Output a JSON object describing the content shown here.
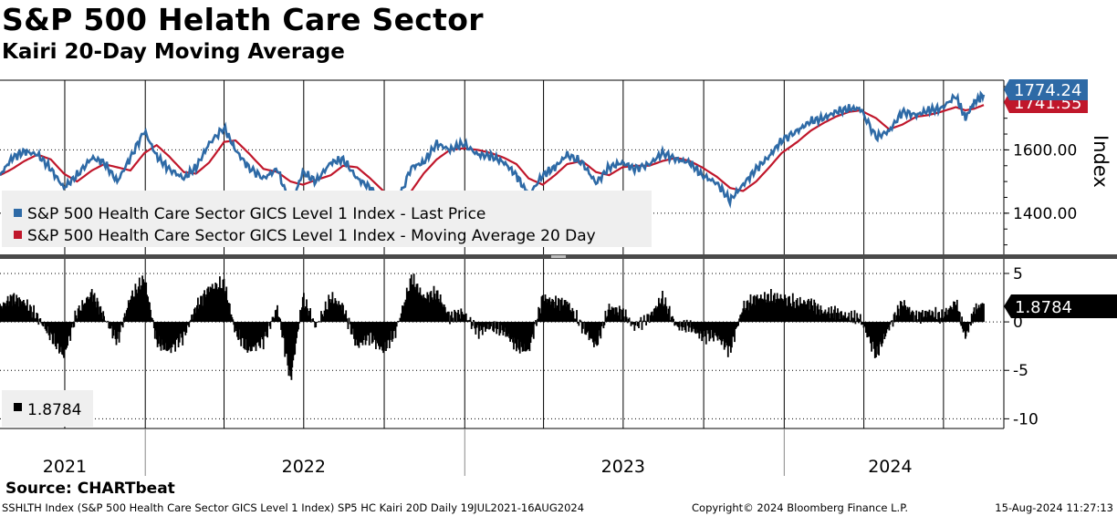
{
  "header": {
    "title": "S&P 500 Helath Care Sector",
    "subtitle": "Kairi 20-Day Moving Average"
  },
  "footer": {
    "source": "Source: CHARTbeat",
    "left": "SSHLTH Index (S&P 500 Health Care Sector GICS Level 1 Index) SP5 HC Kairi 20D  Daily 19JUL2021-16AUG2024",
    "center": "Copyright© 2024 Bloomberg Finance L.P.",
    "right": "15-Aug-2024 11:27:13"
  },
  "colors": {
    "price": "#2e6aa6",
    "moving_average": "#c0172b",
    "kairi": "#000000",
    "grid": "#000000"
  },
  "chart_data": [
    {
      "type": "line",
      "panel": "upper",
      "ylabel": "Index",
      "ylim": [
        1270,
        1820
      ],
      "yticks": [
        1400,
        1600
      ],
      "ytick_labels": [
        "1400.00",
        "1600.00"
      ],
      "x_range": [
        "2021-07-19",
        "2024-08-16"
      ],
      "x_year_labels": [
        {
          "label": "2021",
          "date": "2021-10-01"
        },
        {
          "label": "2022",
          "date": "2022-07-01"
        },
        {
          "label": "2023",
          "date": "2023-07-01"
        },
        {
          "label": "2024",
          "date": "2024-05-01"
        }
      ],
      "legend": [
        {
          "label": "S&P 500 Health Care Sector GICS Level 1 Index - Last Price",
          "color": "#2e6aa6"
        },
        {
          "label": "S&P 500 Health Care Sector GICS Level 1 Index - Moving Average 20 Day",
          "color": "#c0172b"
        }
      ],
      "legend_position": "bottom-left",
      "last_values": {
        "price": "1774.24",
        "moving_average": "1741.55"
      },
      "series": [
        {
          "name": "S&P 500 Health Care Sector GICS Level 1 Index - Last Price",
          "color": "#2e6aa6",
          "points": [
            [
              "2021-07-19",
              1520
            ],
            [
              "2021-08-02",
              1575
            ],
            [
              "2021-08-16",
              1595
            ],
            [
              "2021-08-31",
              1585
            ],
            [
              "2021-09-15",
              1540
            ],
            [
              "2021-09-30",
              1480
            ],
            [
              "2021-10-15",
              1520
            ],
            [
              "2021-11-01",
              1575
            ],
            [
              "2021-11-15",
              1560
            ],
            [
              "2021-11-30",
              1500
            ],
            [
              "2021-12-15",
              1575
            ],
            [
              "2021-12-31",
              1660
            ],
            [
              "2022-01-14",
              1580
            ],
            [
              "2022-01-28",
              1540
            ],
            [
              "2022-02-14",
              1510
            ],
            [
              "2022-02-28",
              1545
            ],
            [
              "2022-03-15",
              1620
            ],
            [
              "2022-04-01",
              1670
            ],
            [
              "2022-04-14",
              1600
            ],
            [
              "2022-04-29",
              1545
            ],
            [
              "2022-05-16",
              1510
            ],
            [
              "2022-06-01",
              1540
            ],
            [
              "2022-06-16",
              1420
            ],
            [
              "2022-06-30",
              1530
            ],
            [
              "2022-07-15",
              1500
            ],
            [
              "2022-08-01",
              1560
            ],
            [
              "2022-08-15",
              1570
            ],
            [
              "2022-08-31",
              1510
            ],
            [
              "2022-09-15",
              1480
            ],
            [
              "2022-09-30",
              1430
            ],
            [
              "2022-10-14",
              1420
            ],
            [
              "2022-11-01",
              1545
            ],
            [
              "2022-11-15",
              1560
            ],
            [
              "2022-11-30",
              1620
            ],
            [
              "2022-12-15",
              1600
            ],
            [
              "2022-12-30",
              1620
            ],
            [
              "2023-01-16",
              1585
            ],
            [
              "2023-01-31",
              1580
            ],
            [
              "2023-02-15",
              1560
            ],
            [
              "2023-03-01",
              1520
            ],
            [
              "2023-03-15",
              1455
            ],
            [
              "2023-03-31",
              1520
            ],
            [
              "2023-04-14",
              1545
            ],
            [
              "2023-04-28",
              1585
            ],
            [
              "2023-05-15",
              1560
            ],
            [
              "2023-05-31",
              1495
            ],
            [
              "2023-06-15",
              1545
            ],
            [
              "2023-06-30",
              1560
            ],
            [
              "2023-07-14",
              1540
            ],
            [
              "2023-07-31",
              1555
            ],
            [
              "2023-08-15",
              1590
            ],
            [
              "2023-08-31",
              1570
            ],
            [
              "2023-09-15",
              1560
            ],
            [
              "2023-09-29",
              1520
            ],
            [
              "2023-10-16",
              1495
            ],
            [
              "2023-10-31",
              1440
            ],
            [
              "2023-11-15",
              1490
            ],
            [
              "2023-11-30",
              1540
            ],
            [
              "2023-12-15",
              1580
            ],
            [
              "2023-12-29",
              1630
            ],
            [
              "2024-01-16",
              1660
            ],
            [
              "2024-01-31",
              1690
            ],
            [
              "2024-02-15",
              1700
            ],
            [
              "2024-02-29",
              1720
            ],
            [
              "2024-03-15",
              1730
            ],
            [
              "2024-03-28",
              1730
            ],
            [
              "2024-04-15",
              1640
            ],
            [
              "2024-04-30",
              1660
            ],
            [
              "2024-05-15",
              1720
            ],
            [
              "2024-05-31",
              1710
            ],
            [
              "2024-06-14",
              1725
            ],
            [
              "2024-06-28",
              1730
            ],
            [
              "2024-07-15",
              1770
            ],
            [
              "2024-07-26",
              1700
            ],
            [
              "2024-08-05",
              1750
            ],
            [
              "2024-08-16",
              1774.24
            ]
          ]
        },
        {
          "name": "S&P 500 Health Care Sector GICS Level 1 Index - Moving Average 20 Day",
          "color": "#c0172b",
          "points": [
            [
              "2021-07-19",
              1520
            ],
            [
              "2021-08-02",
              1540
            ],
            [
              "2021-08-16",
              1565
            ],
            [
              "2021-08-31",
              1585
            ],
            [
              "2021-09-15",
              1570
            ],
            [
              "2021-09-30",
              1525
            ],
            [
              "2021-10-15",
              1500
            ],
            [
              "2021-11-01",
              1535
            ],
            [
              "2021-11-15",
              1555
            ],
            [
              "2021-11-30",
              1545
            ],
            [
              "2021-12-15",
              1535
            ],
            [
              "2021-12-31",
              1590
            ],
            [
              "2022-01-14",
              1615
            ],
            [
              "2022-01-28",
              1580
            ],
            [
              "2022-02-14",
              1530
            ],
            [
              "2022-02-28",
              1525
            ],
            [
              "2022-03-15",
              1560
            ],
            [
              "2022-04-01",
              1625
            ],
            [
              "2022-04-14",
              1630
            ],
            [
              "2022-04-29",
              1590
            ],
            [
              "2022-05-16",
              1540
            ],
            [
              "2022-06-01",
              1530
            ],
            [
              "2022-06-16",
              1500
            ],
            [
              "2022-06-30",
              1490
            ],
            [
              "2022-07-15",
              1505
            ],
            [
              "2022-08-01",
              1520
            ],
            [
              "2022-08-15",
              1550
            ],
            [
              "2022-08-31",
              1545
            ],
            [
              "2022-09-15",
              1510
            ],
            [
              "2022-09-30",
              1470
            ],
            [
              "2022-10-14",
              1440
            ],
            [
              "2022-11-01",
              1470
            ],
            [
              "2022-11-15",
              1525
            ],
            [
              "2022-11-30",
              1570
            ],
            [
              "2022-12-15",
              1600
            ],
            [
              "2022-12-30",
              1605
            ],
            [
              "2023-01-16",
              1600
            ],
            [
              "2023-01-31",
              1590
            ],
            [
              "2023-02-15",
              1575
            ],
            [
              "2023-03-01",
              1555
            ],
            [
              "2023-03-15",
              1510
            ],
            [
              "2023-03-31",
              1490
            ],
            [
              "2023-04-14",
              1520
            ],
            [
              "2023-04-28",
              1555
            ],
            [
              "2023-05-15",
              1565
            ],
            [
              "2023-05-31",
              1530
            ],
            [
              "2023-06-15",
              1520
            ],
            [
              "2023-06-30",
              1545
            ],
            [
              "2023-07-14",
              1550
            ],
            [
              "2023-07-31",
              1550
            ],
            [
              "2023-08-15",
              1565
            ],
            [
              "2023-08-31",
              1575
            ],
            [
              "2023-09-15",
              1565
            ],
            [
              "2023-09-29",
              1545
            ],
            [
              "2023-10-16",
              1515
            ],
            [
              "2023-10-31",
              1480
            ],
            [
              "2023-11-15",
              1470
            ],
            [
              "2023-11-30",
              1500
            ],
            [
              "2023-12-15",
              1545
            ],
            [
              "2023-12-29",
              1590
            ],
            [
              "2024-01-16",
              1625
            ],
            [
              "2024-01-31",
              1660
            ],
            [
              "2024-02-15",
              1685
            ],
            [
              "2024-02-29",
              1705
            ],
            [
              "2024-03-15",
              1720
            ],
            [
              "2024-03-28",
              1725
            ],
            [
              "2024-04-15",
              1700
            ],
            [
              "2024-04-30",
              1665
            ],
            [
              "2024-05-15",
              1680
            ],
            [
              "2024-05-31",
              1705
            ],
            [
              "2024-06-14",
              1710
            ],
            [
              "2024-06-28",
              1720
            ],
            [
              "2024-07-15",
              1735
            ],
            [
              "2024-07-26",
              1725
            ],
            [
              "2024-08-05",
              1730
            ],
            [
              "2024-08-16",
              1741.55
            ]
          ]
        }
      ]
    },
    {
      "type": "bar",
      "panel": "lower",
      "ylim": [
        -11,
        6.5
      ],
      "yticks": [
        5,
        0,
        -5,
        -10
      ],
      "ytick_labels": [
        "5",
        "0",
        "-5",
        "-10"
      ],
      "legend": [
        {
          "label": "1.8784",
          "color": "#000000"
        }
      ],
      "legend_position": "bottom-left",
      "last_value": "1.8784",
      "series": [
        {
          "name": "Kairi 20-Day",
          "color": "#000000",
          "points": [
            [
              "2021-07-19",
              1.5
            ],
            [
              "2021-08-02",
              2.5
            ],
            [
              "2021-08-16",
              2.0
            ],
            [
              "2021-08-31",
              0.5
            ],
            [
              "2021-09-15",
              -1.5
            ],
            [
              "2021-09-30",
              -3.5
            ],
            [
              "2021-10-15",
              1.0
            ],
            [
              "2021-11-01",
              3.0
            ],
            [
              "2021-11-15",
              0.5
            ],
            [
              "2021-11-30",
              -2.0
            ],
            [
              "2021-12-15",
              2.5
            ],
            [
              "2021-12-31",
              4.5
            ],
            [
              "2022-01-14",
              -2.0
            ],
            [
              "2022-01-28",
              -3.0
            ],
            [
              "2022-02-14",
              -1.5
            ],
            [
              "2022-02-28",
              1.5
            ],
            [
              "2022-03-15",
              3.5
            ],
            [
              "2022-04-01",
              4.0
            ],
            [
              "2022-04-14",
              -1.0
            ],
            [
              "2022-04-29",
              -3.0
            ],
            [
              "2022-05-16",
              -2.0
            ],
            [
              "2022-06-01",
              1.5
            ],
            [
              "2022-06-16",
              -6.0
            ],
            [
              "2022-06-30",
              2.5
            ],
            [
              "2022-07-15",
              -0.5
            ],
            [
              "2022-08-01",
              2.5
            ],
            [
              "2022-08-15",
              1.5
            ],
            [
              "2022-08-31",
              -2.5
            ],
            [
              "2022-09-15",
              -1.5
            ],
            [
              "2022-09-30",
              -3.0
            ],
            [
              "2022-10-14",
              -1.0
            ],
            [
              "2022-11-01",
              4.5
            ],
            [
              "2022-11-15",
              2.5
            ],
            [
              "2022-11-30",
              3.0
            ],
            [
              "2022-12-15",
              0.5
            ],
            [
              "2022-12-30",
              1.0
            ],
            [
              "2023-01-16",
              -1.0
            ],
            [
              "2023-01-31",
              -0.5
            ],
            [
              "2023-02-15",
              -1.0
            ],
            [
              "2023-03-01",
              -2.5
            ],
            [
              "2023-03-15",
              -3.0
            ],
            [
              "2023-03-31",
              2.5
            ],
            [
              "2023-04-14",
              2.0
            ],
            [
              "2023-04-28",
              2.0
            ],
            [
              "2023-05-15",
              -0.5
            ],
            [
              "2023-05-31",
              -2.5
            ],
            [
              "2023-06-15",
              1.5
            ],
            [
              "2023-06-30",
              1.0
            ],
            [
              "2023-07-14",
              -0.5
            ],
            [
              "2023-07-31",
              0.5
            ],
            [
              "2023-08-15",
              2.5
            ],
            [
              "2023-08-31",
              -0.5
            ],
            [
              "2023-09-15",
              -0.5
            ],
            [
              "2023-09-29",
              -1.5
            ],
            [
              "2023-10-16",
              -1.5
            ],
            [
              "2023-10-31",
              -3.0
            ],
            [
              "2023-11-15",
              1.5
            ],
            [
              "2023-11-30",
              2.5
            ],
            [
              "2023-12-15",
              2.5
            ],
            [
              "2023-12-29",
              2.5
            ],
            [
              "2024-01-16",
              2.0
            ],
            [
              "2024-01-31",
              2.0
            ],
            [
              "2024-02-15",
              1.0
            ],
            [
              "2024-02-29",
              1.0
            ],
            [
              "2024-03-15",
              0.5
            ],
            [
              "2024-03-28",
              0.3
            ],
            [
              "2024-04-15",
              -3.5
            ],
            [
              "2024-04-30",
              -0.5
            ],
            [
              "2024-05-15",
              2.0
            ],
            [
              "2024-05-31",
              0.5
            ],
            [
              "2024-06-14",
              1.0
            ],
            [
              "2024-06-28",
              0.5
            ],
            [
              "2024-07-15",
              2.0
            ],
            [
              "2024-07-26",
              -1.5
            ],
            [
              "2024-08-05",
              1.0
            ],
            [
              "2024-08-16",
              1.8784
            ]
          ]
        }
      ]
    }
  ]
}
